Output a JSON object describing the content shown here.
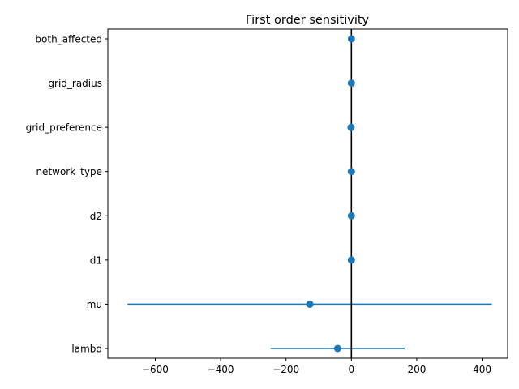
{
  "chart_data": {
    "type": "scatter",
    "title": "First order sensitivity",
    "xlabel": "",
    "ylabel": "",
    "xlim": [
      -745,
      478
    ],
    "xticks": [
      -600,
      -400,
      -200,
      0,
      200,
      400
    ],
    "xtick_labels": [
      "−600",
      "−400",
      "−200",
      "0",
      "200",
      "400"
    ],
    "categories": [
      "both_affected",
      "grid_radius",
      "grid_preference",
      "network_type",
      "d2",
      "d1",
      "mu",
      "lambd"
    ],
    "values": [
      0,
      0,
      -1,
      0,
      0,
      0,
      -127,
      -42
    ],
    "error_low": [
      0,
      0,
      -1,
      0,
      0,
      0,
      -685,
      -247
    ],
    "error_high": [
      0,
      0,
      -1,
      0,
      0,
      0,
      430,
      163
    ],
    "reference_line_x": 0,
    "grid": false,
    "colors": {
      "point": "#1f77b4",
      "error_bar": "#1f77b4",
      "reference_line": "#000000",
      "axes": "#000000"
    }
  }
}
